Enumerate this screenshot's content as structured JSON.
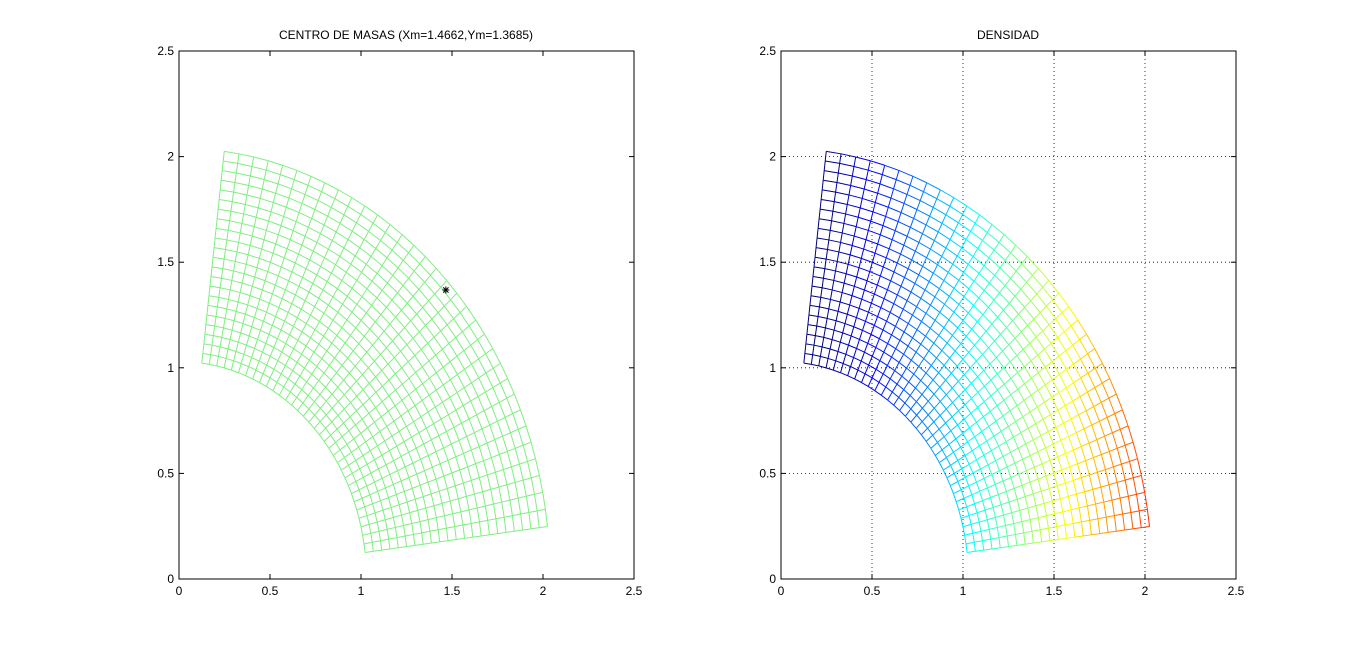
{
  "chart_data": [
    {
      "type": "mesh",
      "title": "CENTRO DE MASAS (Xm=1.4662,Ym=1.3685)",
      "xlim": [
        0,
        2.5
      ],
      "ylim": [
        0,
        2.5
      ],
      "xticks": [
        0,
        0.5,
        1,
        1.5,
        2,
        2.5
      ],
      "yticks": [
        0,
        0.5,
        1,
        1.5,
        2,
        2.5
      ],
      "xticklabels": [
        "0",
        "0.5",
        "1",
        "1.5",
        "2",
        "2.5"
      ],
      "yticklabels": [
        "0",
        "0.5",
        "1",
        "1.5",
        "2",
        "2.5"
      ],
      "grid": false,
      "mesh": {
        "r_range": [
          1.03,
          2.04
        ],
        "theta_deg_range": [
          7,
          83
        ],
        "radial_lines": 23,
        "angular_lines": 34,
        "color": "#80ee80"
      },
      "center_of_mass": {
        "x": 1.4662,
        "y": 1.3685,
        "marker": "*",
        "color": "#000000"
      }
    },
    {
      "type": "mesh",
      "title": "DENSIDAD",
      "xlim": [
        0,
        2.5
      ],
      "ylim": [
        0,
        2.5
      ],
      "xticks": [
        0,
        0.5,
        1,
        1.5,
        2,
        2.5
      ],
      "yticks": [
        0,
        0.5,
        1,
        1.5,
        2,
        2.5
      ],
      "xticklabels": [
        "0",
        "0.5",
        "1",
        "1.5",
        "2",
        "2.5"
      ],
      "yticklabels": [
        "0",
        "0.5",
        "1",
        "1.5",
        "2",
        "2.5"
      ],
      "grid": true,
      "mesh": {
        "r_range": [
          1.03,
          2.04
        ],
        "theta_deg_range": [
          7,
          83
        ],
        "radial_lines": 23,
        "angular_lines": 34,
        "colormap": "jet",
        "color_by": "x",
        "color_range": [
          0.25,
          2.38
        ]
      }
    }
  ]
}
